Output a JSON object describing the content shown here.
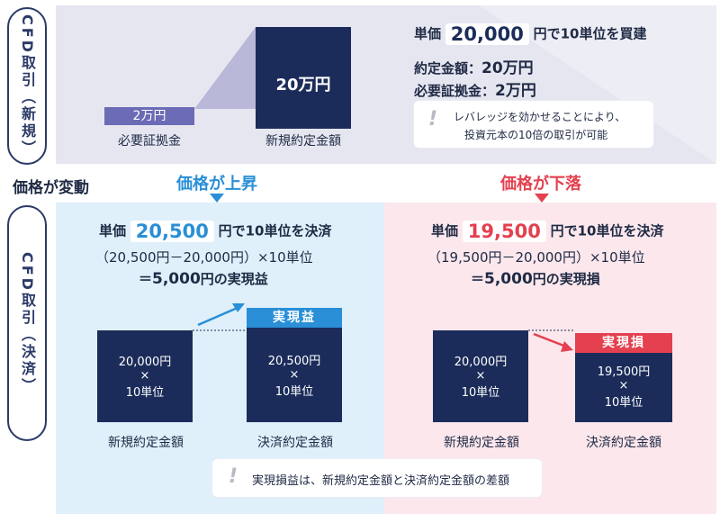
{
  "side_labels": {
    "new": "CFD取引（新規）",
    "settle": "CFD取引（決済）"
  },
  "top": {
    "margin_tag": "2万円",
    "margin_caption": "必要証拠金",
    "contract_bar": "20万円",
    "contract_caption": "新規約定金額",
    "line1_prefix": "単価",
    "line1_value": "20,000",
    "line1_suffix": "円で10単位を買建",
    "line2_label": "約定金額：",
    "line2_value": "20万円",
    "line3_label": "必要証拠金：",
    "line3_value": "2万円",
    "note_line1": "レバレッジを効かせることにより、",
    "note_line2": "投資元本の10倍の取引が可能"
  },
  "price_change_label": "価格が変動",
  "up": {
    "heading": "価格が上昇",
    "line1_prefix": "単価",
    "line1_value": "20,500",
    "line1_suffix": "円で10単位を決済",
    "line2": "（20,500円－20,000円）×10単位",
    "line3_eq": "＝",
    "line3_value": "5,000",
    "line3_suffix": "円の実現益",
    "bar1_l1": "20,000円",
    "bar1_l2": "×",
    "bar1_l3": "10単位",
    "bar2_tag": "実現益",
    "bar2_l1": "20,500円",
    "bar2_l2": "×",
    "bar2_l3": "10単位",
    "cap1": "新規約定金額",
    "cap2": "決済約定金額"
  },
  "down": {
    "heading": "価格が下落",
    "line1_prefix": "単価",
    "line1_value": "19,500",
    "line1_suffix": "円で10単位を決済",
    "line2": "（19,500円－20,000円）×10単位",
    "line3_eq": "＝",
    "line3_value": "5,000",
    "line3_suffix": "円の実現損",
    "bar1_l1": "20,000円",
    "bar1_l2": "×",
    "bar1_l3": "10単位",
    "bar2_tag": "実現損",
    "bar2_l1": "19,500円",
    "bar2_l2": "×",
    "bar2_l3": "10単位",
    "cap1": "新規約定金額",
    "cap2": "決済約定金額"
  },
  "bottom_note": "実現損益は、新規約定金額と決済約定金額の差額",
  "colors": {
    "navy": "#1b2c5a",
    "purple": "#6c6bb6",
    "blue_accent": "#2a8fd6",
    "red_accent": "#e4404f",
    "top_bg": "#e6e6f1",
    "blue_bg": "#dff0fb",
    "pink_bg": "#fbe7ec"
  }
}
